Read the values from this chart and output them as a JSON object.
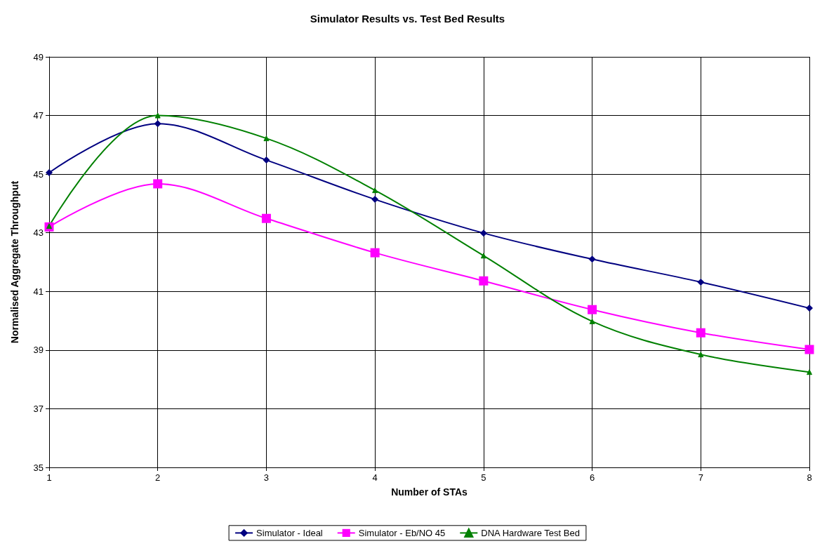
{
  "chart_data": {
    "type": "line",
    "title": "Simulator Results vs. Test Bed Results",
    "xlabel": "Number of STAs",
    "ylabel": "Normalised Aggregate Throughput",
    "x": [
      1,
      2,
      3,
      4,
      5,
      6,
      7,
      8
    ],
    "xlim": [
      1,
      8
    ],
    "xticks": [
      1,
      2,
      3,
      4,
      5,
      6,
      7,
      8
    ],
    "ylim": [
      35,
      49
    ],
    "yticks": [
      35,
      37,
      39,
      41,
      43,
      45,
      47,
      49
    ],
    "grid": true,
    "legend": "bottom",
    "series": [
      {
        "name": "Simulator - Ideal",
        "color": "#000080",
        "marker": "diamond",
        "values": [
          45.05,
          46.72,
          45.48,
          44.14,
          42.99,
          42.1,
          41.32,
          40.43
        ]
      },
      {
        "name": "Simulator - Eb/NO 45",
        "color": "#ff00ff",
        "marker": "square",
        "values": [
          43.2,
          44.67,
          43.49,
          42.32,
          41.36,
          40.38,
          39.59,
          39.02
        ]
      },
      {
        "name": "DNA Hardware Test Bed",
        "color": "#008000",
        "marker": "triangle",
        "values": [
          43.23,
          47.0,
          46.22,
          44.45,
          42.22,
          39.98,
          38.85,
          38.25
        ]
      }
    ]
  }
}
